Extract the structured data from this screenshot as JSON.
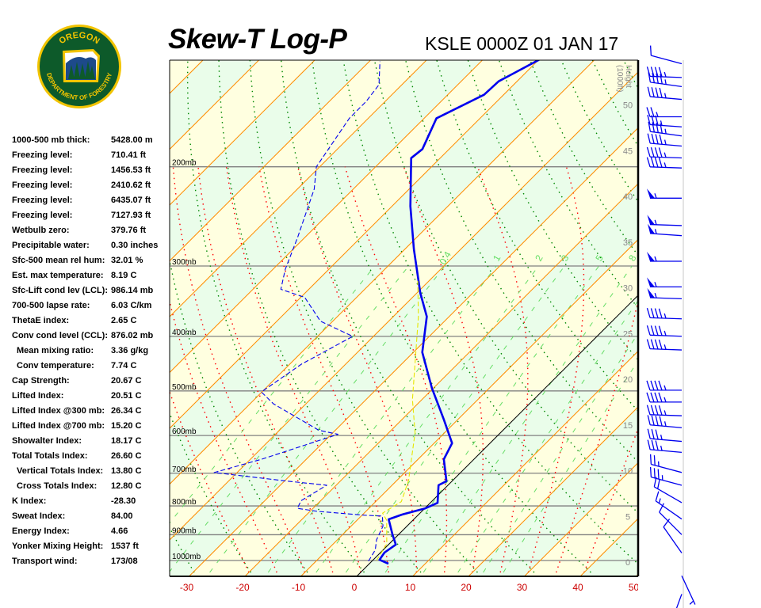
{
  "logo": {
    "top_text": "OREGON",
    "bottom_text": "DEPARTMENT OF FORESTRY"
  },
  "header": {
    "title": "Skew-T Log-P",
    "station": "KSLE 0000Z 01 JAN 17"
  },
  "stats": [
    {
      "label": "1000-500 mb thick:",
      "value": "5428.00 m"
    },
    {
      "label": "Freezing level:",
      "value": "710.41 ft"
    },
    {
      "label": "Freezing level:",
      "value": "1456.53 ft"
    },
    {
      "label": "Freezing level:",
      "value": "2410.62 ft"
    },
    {
      "label": "Freezing level:",
      "value": "6435.07 ft"
    },
    {
      "label": "Freezing level:",
      "value": "7127.93 ft"
    },
    {
      "label": "Wetbulb zero:",
      "value": "379.76 ft"
    },
    {
      "label": "Precipitable water:",
      "value": "0.30 inches"
    },
    {
      "label": "Sfc-500 mean rel hum:",
      "value": "32.01 %"
    },
    {
      "label": "Est. max temperature:",
      "value": "8.19 C"
    },
    {
      "label": "Sfc-Lift cond lev (LCL):",
      "value": "986.14 mb"
    },
    {
      "label": "700-500 lapse rate:",
      "value": "6.03 C/km"
    },
    {
      "label": "ThetaE index:",
      "value": "2.65 C"
    },
    {
      "label": "Conv cond level (CCL):",
      "value": "876.02 mb"
    },
    {
      "label": "Mean mixing ratio:",
      "value": "3.36 g/kg",
      "indent": true
    },
    {
      "label": "Conv temperature:",
      "value": "7.74 C",
      "indent": true
    },
    {
      "label": "Cap Strength:",
      "value": "20.67 C"
    },
    {
      "label": "Lifted Index:",
      "value": "20.51 C"
    },
    {
      "label": "Lifted Index @300 mb:",
      "value": "26.34 C"
    },
    {
      "label": "Lifted Index @700 mb:",
      "value": "15.20 C"
    },
    {
      "label": "Showalter Index:",
      "value": "18.17 C"
    },
    {
      "label": "Total Totals Index:",
      "value": "26.60 C"
    },
    {
      "label": "Vertical Totals Index:",
      "value": "13.80 C",
      "indent": true
    },
    {
      "label": "Cross Totals Index:",
      "value": "12.80 C",
      "indent": true
    },
    {
      "label": "K Index:",
      "value": "-28.30"
    },
    {
      "label": "Sweat Index:",
      "value": "84.00"
    },
    {
      "label": "Energy Index:",
      "value": "4.66"
    },
    {
      "label": "Yonker Mixing Height:",
      "value": "1537 ft"
    },
    {
      "label": "Transport wind:",
      "value": "173/08"
    }
  ],
  "chart_data": {
    "type": "line",
    "subtype": "skew-t log-p",
    "x_unit": "C",
    "y_unit": "mb",
    "ylim": [
      1000,
      129
    ],
    "xlim_at_surface": [
      -33,
      50
    ],
    "x_ticks": [
      "-30",
      "-20",
      "-10",
      "0",
      "10",
      "20",
      "30",
      "40",
      "50"
    ],
    "x_tick_values": [
      -30,
      -20,
      -10,
      0,
      10,
      20,
      30,
      40,
      50
    ],
    "pressure_levels": [
      200,
      300,
      400,
      500,
      600,
      700,
      800,
      900,
      1000
    ],
    "pressure_labels": [
      "200mb",
      "300mb",
      "400mb",
      "500mb",
      "600mb",
      "700mb",
      "800mb",
      "900mb",
      "1000mb"
    ],
    "height_axis": {
      "label": "Height",
      "unit_label": "(1000ft)",
      "ticks": [
        "0",
        "5",
        "10",
        "15",
        "20",
        "25",
        "30",
        "35",
        "40",
        "45",
        "50"
      ],
      "tick_values": [
        0,
        5,
        10,
        15,
        20,
        25,
        30,
        35,
        40,
        45,
        50
      ]
    },
    "mixing_ratio_labels": [
      "0.4",
      "1",
      "2",
      "3",
      "5",
      "8"
    ],
    "mixing_ratio_values": [
      0.4,
      1,
      2,
      3,
      5,
      8
    ],
    "series": [
      {
        "name": "Temperature",
        "color": "#0000ee",
        "style": "solid",
        "points": [
          [
            1013,
            3.4
          ],
          [
            997,
            1.1
          ],
          [
            968,
            0.7
          ],
          [
            937,
            1.3
          ],
          [
            899,
            -1.1
          ],
          [
            845,
            -4.5
          ],
          [
            829,
            -3.0
          ],
          [
            808,
            0.1
          ],
          [
            790,
            1.3
          ],
          [
            735,
            -1.7
          ],
          [
            723,
            -1.0
          ],
          [
            661,
            -5.4
          ],
          [
            619,
            -6.8
          ],
          [
            562,
            -12.5
          ],
          [
            494,
            -20.3
          ],
          [
            427,
            -28.4
          ],
          [
            369,
            -34.0
          ],
          [
            335,
            -39.4
          ],
          [
            280,
            -48.4
          ],
          [
            235,
            -56.7
          ],
          [
            193,
            -65.2
          ],
          [
            186,
            -64.8
          ],
          [
            164,
            -67.8
          ],
          [
            149,
            -63.5
          ],
          [
            141,
            -63.3
          ],
          [
            129,
            -59.9
          ]
        ]
      },
      {
        "name": "Dewpoint",
        "color": "#0000ee",
        "style": "dashed",
        "points": [
          [
            1003,
            -0.6
          ],
          [
            958,
            -1.4
          ],
          [
            919,
            -3.0
          ],
          [
            869,
            -4.3
          ],
          [
            834,
            -6.2
          ],
          [
            831,
            -9.5
          ],
          [
            818,
            -18.7
          ],
          [
            808,
            -22.8
          ],
          [
            783,
            -23.5
          ],
          [
            735,
            -21.7
          ],
          [
            723,
            -29.4
          ],
          [
            698,
            -44.1
          ],
          [
            661,
            -38.0
          ],
          [
            597,
            -28.8
          ],
          [
            587,
            -33.0
          ],
          [
            527,
            -45.8
          ],
          [
            502,
            -50.1
          ],
          [
            448,
            -47.9
          ],
          [
            400,
            -43.7
          ],
          [
            376,
            -52.2
          ],
          [
            341,
            -59.3
          ],
          [
            330,
            -65.0
          ],
          [
            304,
            -67.8
          ],
          [
            267,
            -71.3
          ],
          [
            219,
            -77.0
          ],
          [
            200,
            -80.6
          ],
          [
            181,
            -82.0
          ],
          [
            164,
            -83.4
          ],
          [
            153,
            -83.4
          ],
          [
            143,
            -84.1
          ],
          [
            130,
            -88.1
          ]
        ]
      },
      {
        "name": "Wetbulb",
        "color": "#e6e600",
        "style": "dashed",
        "points": [
          [
            1000,
            0.7
          ],
          [
            935,
            -0.4
          ],
          [
            848,
            -4.7
          ],
          [
            824,
            -6.7
          ],
          [
            786,
            -5.4
          ],
          [
            721,
            -7.9
          ],
          [
            593,
            -15.3
          ],
          [
            518,
            -21.7
          ],
          [
            369,
            -35.5
          ],
          [
            319,
            -42.0
          ]
        ]
      }
    ],
    "winds": [
      {
        "height_kft": 54.5,
        "dir": 285,
        "speed_kt": 10
      },
      {
        "height_kft": 53,
        "dir": 272,
        "speed_kt": 45
      },
      {
        "height_kft": 52,
        "dir": 278,
        "speed_kt": 45
      },
      {
        "height_kft": 50.6,
        "dir": 275,
        "speed_kt": 45
      },
      {
        "height_kft": 48.7,
        "dir": 270,
        "speed_kt": 25
      },
      {
        "height_kft": 47.6,
        "dir": 274,
        "speed_kt": 35
      },
      {
        "height_kft": 46.6,
        "dir": 278,
        "speed_kt": 45
      },
      {
        "height_kft": 45.5,
        "dir": 275,
        "speed_kt": 45
      },
      {
        "height_kft": 44.2,
        "dir": 272,
        "speed_kt": 45
      },
      {
        "height_kft": 43.1,
        "dir": 272,
        "speed_kt": 45
      },
      {
        "height_kft": 39.8,
        "dir": 270,
        "speed_kt": 55
      },
      {
        "height_kft": 36.8,
        "dir": 272,
        "speed_kt": 55
      },
      {
        "height_kft": 35.7,
        "dir": 274,
        "speed_kt": 55
      },
      {
        "height_kft": 32.9,
        "dir": 270,
        "speed_kt": 55
      },
      {
        "height_kft": 30.1,
        "dir": 270,
        "speed_kt": 55
      },
      {
        "height_kft": 28.8,
        "dir": 272,
        "speed_kt": 55
      },
      {
        "height_kft": 26.6,
        "dir": 272,
        "speed_kt": 45
      },
      {
        "height_kft": 24.7,
        "dir": 272,
        "speed_kt": 45
      },
      {
        "height_kft": 23.2,
        "dir": 272,
        "speed_kt": 45
      },
      {
        "height_kft": 18.8,
        "dir": 270,
        "speed_kt": 45
      },
      {
        "height_kft": 17.5,
        "dir": 270,
        "speed_kt": 45
      },
      {
        "height_kft": 16.0,
        "dir": 272,
        "speed_kt": 45
      },
      {
        "height_kft": 14.7,
        "dir": 275,
        "speed_kt": 45
      },
      {
        "height_kft": 13.2,
        "dir": 275,
        "speed_kt": 35
      },
      {
        "height_kft": 12.0,
        "dir": 275,
        "speed_kt": 35
      },
      {
        "height_kft": 9.8,
        "dir": 285,
        "speed_kt": 25
      },
      {
        "height_kft": 8.4,
        "dir": 285,
        "speed_kt": 35
      },
      {
        "height_kft": 6.5,
        "dir": 300,
        "speed_kt": 20
      },
      {
        "height_kft": 4.7,
        "dir": 305,
        "speed_kt": 15
      },
      {
        "height_kft": 3.0,
        "dir": 315,
        "speed_kt": 10
      },
      {
        "height_kft": 1.0,
        "dir": 325,
        "speed_kt": 10
      },
      {
        "height_kft": -1.5,
        "dir": 155,
        "speed_kt": 5
      },
      {
        "height_kft": -3.5,
        "dir": 200,
        "speed_kt": 5
      }
    ]
  },
  "colors": {
    "band_yellow": "#ffffe0",
    "band_green": "#eafdea",
    "isotherm": "#ff8c00",
    "dry_adiabat": "#008800",
    "moist_adiabat": "#ff0000",
    "mixing_ratio": "#66dd66",
    "tick_label": "#cc0000",
    "height_label": "#888888"
  }
}
